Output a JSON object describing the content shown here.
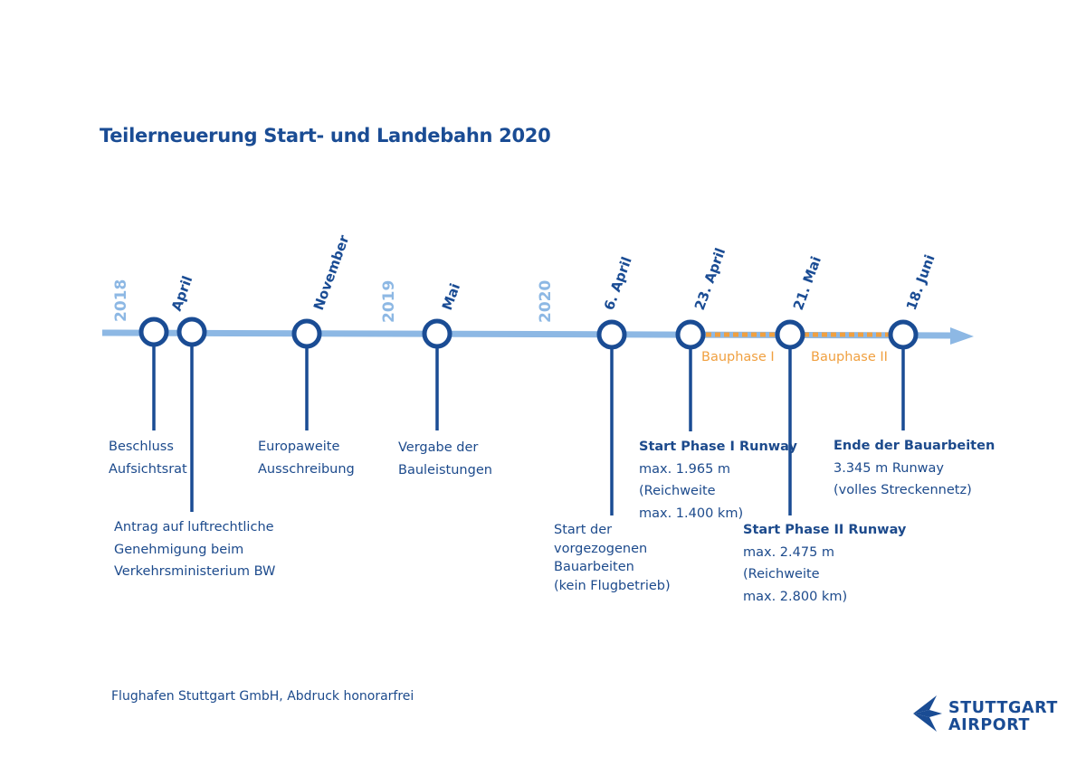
{
  "title": "Teilerneuerung Start- und Landebahn 2020",
  "years": [
    "2018",
    "2019",
    "2020"
  ],
  "dates": [
    "April",
    "November",
    "Mai",
    "6. April",
    "23. April",
    "21. Mai",
    "18. Juni"
  ],
  "phases": [
    "Bauphase I",
    "Bauphase II"
  ],
  "events": {
    "beschluss": [
      "Beschluss",
      "Aufsichtsrat"
    ],
    "antrag": [
      "Antrag auf luftrechtliche",
      "Genehmigung beim",
      "Verkehrsministerium BW"
    ],
    "europaweit": [
      "Europaweite",
      "Ausschreibung"
    ],
    "vergabe": [
      "Vergabe der",
      "Bauleistungen"
    ],
    "start_vorgezogen": [
      "Start der",
      "vorgezogenen",
      "Bauarbeiten",
      "(kein Flugbetrieb)"
    ],
    "phase1": {
      "head": "Start Phase I Runway",
      "lines": [
        "max. 1.965 m",
        "(Reichweite",
        "max. 1.400 km)"
      ]
    },
    "phase2": {
      "head": "Start Phase II Runway",
      "lines": [
        "max. 2.475 m",
        "(Reichweite",
        "max. 2.800 km)"
      ]
    },
    "ende": {
      "head": "Ende der Bauarbeiten",
      "lines": [
        "3.345 m Runway",
        "(volles Streckennetz)"
      ]
    }
  },
  "footer": "Flughafen Stuttgart GmbH, Abdruck honorarfrei",
  "logo": {
    "line1": "STUTTGART",
    "line2": "AIRPORT"
  },
  "colors": {
    "dark_blue": "#1a4c94",
    "light_blue": "#8db8e4",
    "orange": "#f0a040"
  }
}
